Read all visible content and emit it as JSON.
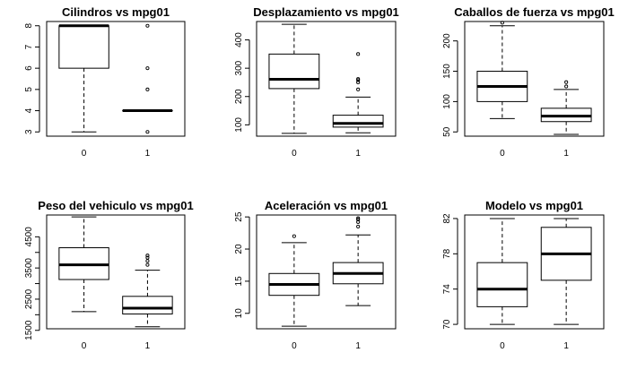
{
  "chart_data": [
    {
      "type": "boxplot",
      "title": "Cilindros vs mpg01",
      "categories": [
        "0",
        "1"
      ],
      "ylim": [
        2.8,
        8.2
      ],
      "yticks": [
        3,
        4,
        5,
        6,
        7,
        8
      ],
      "boxes": [
        {
          "whisker_low": 3,
          "q1": 6,
          "median": 8,
          "q3": 8,
          "whisker_high": 8,
          "outliers": []
        },
        {
          "whisker_low": 4,
          "q1": 4,
          "median": 4,
          "q3": 4,
          "whisker_high": 4,
          "outliers": [
            3,
            5,
            6,
            8
          ]
        }
      ]
    },
    {
      "type": "boxplot",
      "title": "Desplazamiento vs mpg01",
      "categories": [
        "0",
        "1"
      ],
      "ylim": [
        60,
        465
      ],
      "yticks": [
        100,
        200,
        300,
        400
      ],
      "boxes": [
        {
          "whisker_low": 70,
          "q1": 228,
          "median": 261,
          "q3": 350,
          "whisker_high": 455,
          "outliers": []
        },
        {
          "whisker_low": 72,
          "q1": 92,
          "median": 105,
          "q3": 134,
          "whisker_high": 198,
          "outliers": [
            225,
            250,
            258,
            262,
            350
          ]
        }
      ]
    },
    {
      "type": "boxplot",
      "title": "Caballos de fuerza vs mpg01",
      "categories": [
        "0",
        "1"
      ],
      "ylim": [
        43,
        232
      ],
      "yticks": [
        50,
        100,
        150,
        200
      ],
      "boxes": [
        {
          "whisker_low": 72,
          "q1": 100,
          "median": 125,
          "q3": 150,
          "whisker_high": 225,
          "outliers": [
            230
          ]
        },
        {
          "whisker_low": 46,
          "q1": 67,
          "median": 76,
          "q3": 89,
          "whisker_high": 120,
          "outliers": [
            125,
            132
          ]
        }
      ]
    },
    {
      "type": "boxplot",
      "title": "Peso del vehiculo vs mpg01",
      "categories": [
        "0",
        "1"
      ],
      "ylim": [
        1550,
        5200
      ],
      "yticks": [
        1500,
        2500,
        3500,
        4500
      ],
      "extra_yticks": [
        2000,
        3000,
        4000
      ],
      "boxes": [
        {
          "whisker_low": 2100,
          "q1": 3130,
          "median": 3600,
          "q3": 4150,
          "whisker_high": 5140,
          "outliers": []
        },
        {
          "whisker_low": 1613,
          "q1": 2025,
          "median": 2210,
          "q3": 2590,
          "whisker_high": 3430,
          "outliers": [
            3600,
            3725,
            3830,
            3900
          ]
        }
      ]
    },
    {
      "type": "boxplot",
      "title": "Aceleración vs mpg01",
      "categories": [
        "0",
        "1"
      ],
      "ylim": [
        7.6,
        25.3
      ],
      "yticks": [
        10,
        15,
        20,
        25
      ],
      "boxes": [
        {
          "whisker_low": 8,
          "q1": 12.8,
          "median": 14.5,
          "q3": 16.2,
          "whisker_high": 21,
          "outliers": [
            22
          ]
        },
        {
          "whisker_low": 11.2,
          "q1": 14.6,
          "median": 16.2,
          "q3": 17.9,
          "whisker_high": 22.2,
          "outliers": [
            23.5,
            24.2,
            24.6,
            24.8
          ]
        }
      ]
    },
    {
      "type": "boxplot",
      "title": "Modelo vs mpg01",
      "categories": [
        "0",
        "1"
      ],
      "ylim": [
        69.5,
        82.4
      ],
      "yticks": [
        70,
        74,
        78,
        82
      ],
      "boxes": [
        {
          "whisker_low": 70,
          "q1": 72,
          "median": 74,
          "q3": 77,
          "whisker_high": 82,
          "outliers": []
        },
        {
          "whisker_low": 70,
          "q1": 75,
          "median": 78,
          "q3": 81,
          "whisker_high": 82,
          "outliers": []
        }
      ]
    }
  ]
}
